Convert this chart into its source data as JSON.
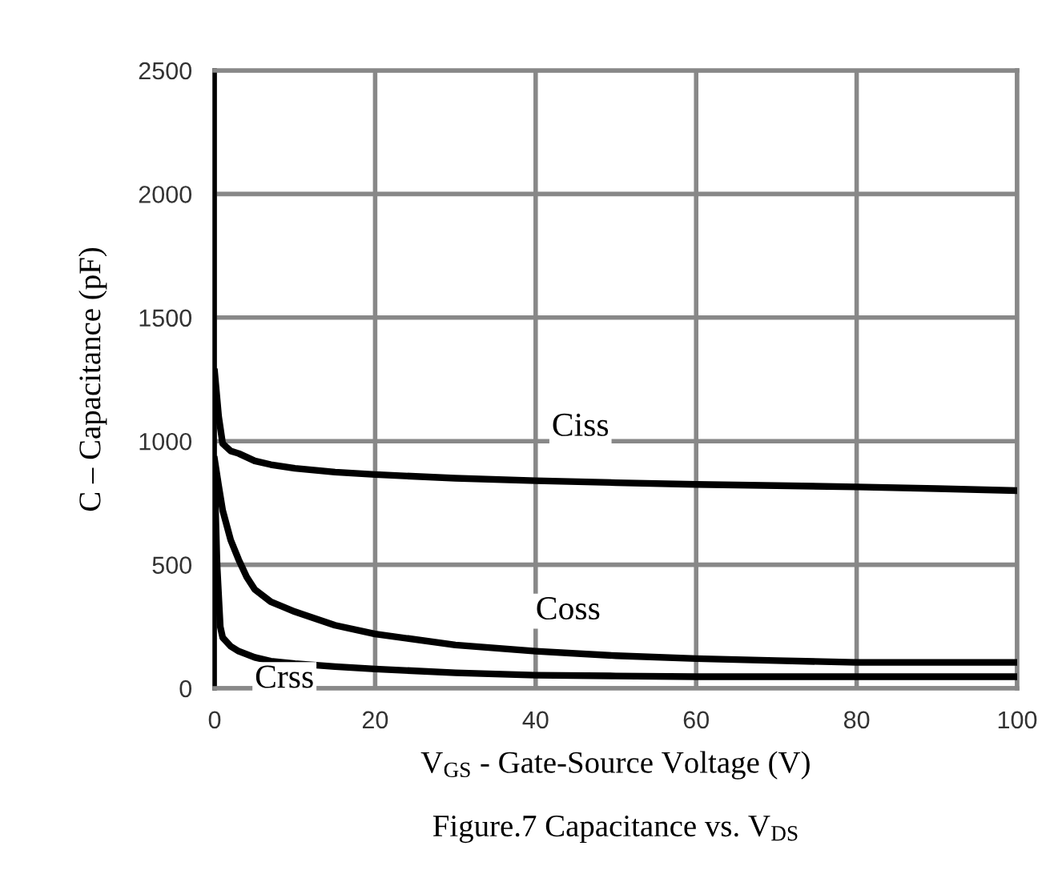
{
  "chart_data": {
    "type": "line",
    "xlabel": "V$_{GS}$ - Gate-Source Voltage (V)",
    "ylabel": "C – Capacitance (pF)",
    "xlim": [
      0,
      100
    ],
    "xticks": [
      0,
      20,
      40,
      60,
      80,
      100
    ],
    "ylim": [
      0,
      2500
    ],
    "yticks": [
      0,
      500,
      1000,
      1500,
      2000,
      2500
    ],
    "grid": true,
    "legend": false,
    "marker": "none",
    "line_style": "solid",
    "series": [
      {
        "name": "Ciss",
        "color": "#000000",
        "x": [
          0,
          0.5,
          1,
          2,
          3,
          5,
          7,
          10,
          15,
          20,
          30,
          40,
          50,
          60,
          70,
          80,
          90,
          100
        ],
        "values": [
          1280,
          1100,
          990,
          960,
          950,
          920,
          905,
          890,
          875,
          865,
          850,
          840,
          832,
          825,
          820,
          815,
          808,
          800
        ]
      },
      {
        "name": "Coss",
        "color": "#000000",
        "x": [
          0,
          0.5,
          1,
          2,
          3,
          4,
          5,
          7,
          10,
          15,
          20,
          30,
          40,
          50,
          60,
          70,
          80,
          90,
          100
        ],
        "values": [
          925,
          820,
          720,
          600,
          520,
          450,
          400,
          350,
          310,
          255,
          220,
          175,
          150,
          132,
          120,
          112,
          105,
          105,
          105
        ]
      },
      {
        "name": "Crss",
        "color": "#000000",
        "x": [
          0,
          0.3,
          0.7,
          1,
          2,
          3,
          5,
          7,
          10,
          15,
          20,
          30,
          40,
          50,
          60,
          70,
          80,
          90,
          100
        ],
        "values": [
          850,
          500,
          250,
          205,
          170,
          150,
          125,
          110,
          100,
          88,
          78,
          63,
          53,
          50,
          47,
          47,
          47,
          47,
          47
        ]
      }
    ],
    "annotations": [
      "Figure.7 Capacitance vs. V$_{DS}$"
    ]
  }
}
